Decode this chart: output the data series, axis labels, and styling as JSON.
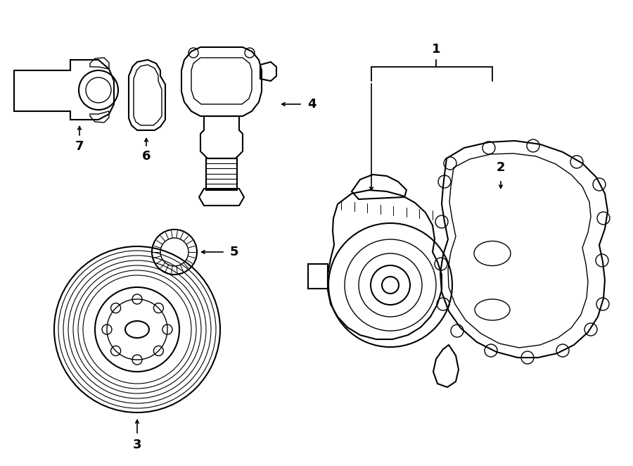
{
  "bg_color": "#ffffff",
  "line_color": "#000000",
  "fig_width": 9.0,
  "fig_height": 6.62,
  "dpi": 100,
  "label_fontsize": 13
}
